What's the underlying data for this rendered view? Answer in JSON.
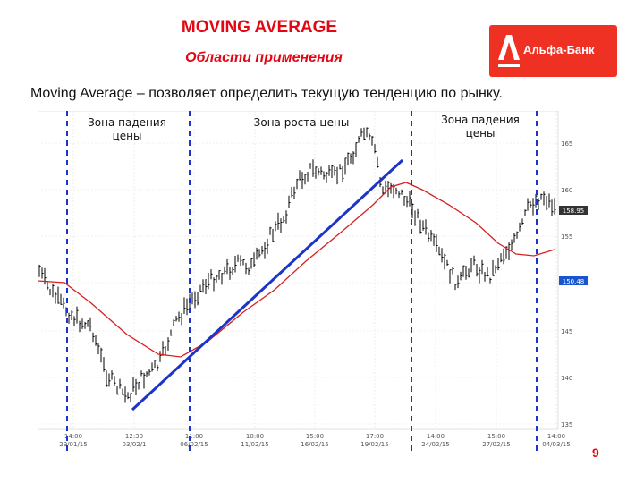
{
  "slide": {
    "title": "MOVING AVERAGE",
    "subtitle": "Области применения",
    "headline": "Moving Average – позволяет определить текущую тенденцию по рынку.",
    "page_number": "9"
  },
  "logo": {
    "text": "Альфа-Банк",
    "color": "#ef3124"
  },
  "zones": [
    {
      "lines": [
        "Зона падения",
        "цены"
      ]
    },
    {
      "lines": [
        "Зона роста цены"
      ]
    },
    {
      "lines": [
        "Зона падения",
        "цены"
      ]
    }
  ],
  "chart_data": {
    "type": "line",
    "series": [
      {
        "kind": "price-bars",
        "color": "#000000"
      },
      {
        "kind": "moving-average",
        "color": "#d62020"
      }
    ],
    "x_ticks": [
      [
        "14:00",
        "29/01/15"
      ],
      [
        "12:30",
        "03/02/1"
      ],
      [
        "11:00",
        "06/02/15"
      ],
      [
        "10:00",
        "11/02/15"
      ],
      [
        "15:00",
        "16/02/15"
      ],
      [
        "17:00",
        "19/02/15"
      ],
      [
        "14:00",
        "24/02/15"
      ],
      [
        "15:00",
        "27/02/15"
      ],
      [
        "14:00",
        "04/03/15"
      ]
    ],
    "y_ticks": [
      "165",
      "160",
      "155",
      "150",
      "145",
      "140",
      "135"
    ],
    "y_ticks_top_down": true,
    "price_label": "158.95",
    "ma_label": "150.48",
    "trend_line_color": "#1a35c8",
    "zone_divider_color": "#1a35c8",
    "grid": true
  }
}
